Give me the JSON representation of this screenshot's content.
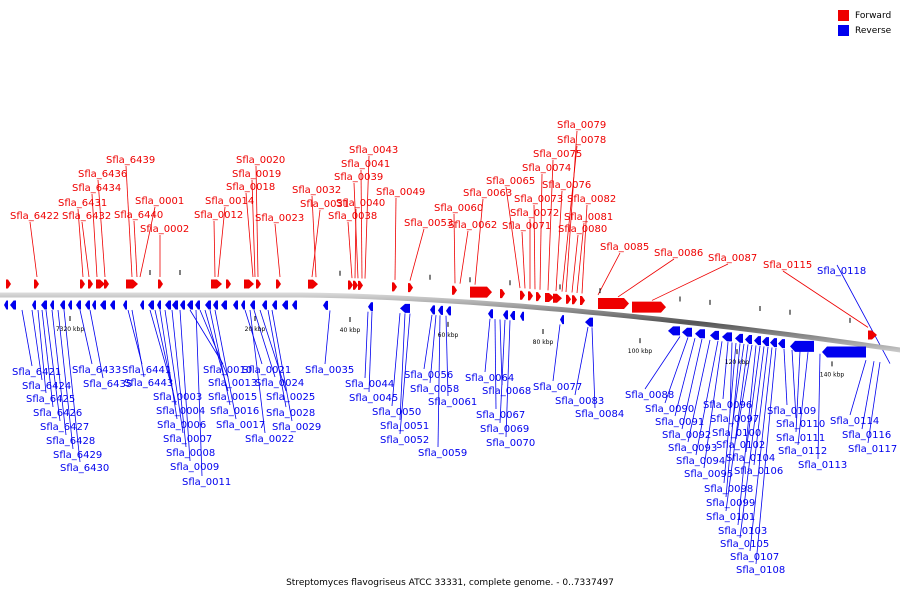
{
  "caption": "Streptomyces flavogriseus ATCC 33331, complete genome. - 0..7337497",
  "legend": [
    {
      "label": "Forward",
      "color": "#ee0000"
    },
    {
      "label": "Reverse",
      "color": "#0000ee"
    }
  ],
  "colors": {
    "forward": "#ee0000",
    "reverse": "#0000ee",
    "backbone": "#555555"
  },
  "scale_labels": [
    "7320 kbp",
    "20 kbp",
    "40 kbp",
    "60 kbp",
    "80 kbp",
    "100 kbp",
    "120 kbp",
    "140 kbp"
  ],
  "forward_labels": [
    "Sfla_6422",
    "Sfla_6431",
    "Sfla_6432",
    "Sfla_6434",
    "Sfla_6436",
    "Sfla_6439",
    "Sfla_6440",
    "Sfla_0001",
    "Sfla_0002",
    "Sfla_0012",
    "Sfla_0014",
    "Sfla_0018",
    "Sfla_0019",
    "Sfla_0020",
    "Sfla_0023",
    "Sfla_0031",
    "Sfla_0032",
    "Sfla_0038",
    "Sfla_0040",
    "Sfla_0039",
    "Sfla_0041",
    "Sfla_0043",
    "Sfla_0049",
    "Sfla_0053",
    "Sfla_0060",
    "Sfla_0062",
    "Sfla_0063",
    "Sfla_0065",
    "Sfla_0071",
    "Sfla_0072",
    "Sfla_0073",
    "Sfla_0074",
    "Sfla_0075",
    "Sfla_0076",
    "Sfla_0078",
    "Sfla_0079",
    "Sfla_0080",
    "Sfla_0081",
    "Sfla_0082",
    "Sfla_0085",
    "Sfla_0086",
    "Sfla_0087",
    "Sfla_0115"
  ],
  "reverse_labels": [
    "Sfla_0118",
    "Sfla_6421",
    "Sfla_6424",
    "Sfla_6425",
    "Sfla_6426",
    "Sfla_6427",
    "Sfla_6428",
    "Sfla_6429",
    "Sfla_6430",
    "Sfla_6433",
    "Sfla_6435",
    "Sfla_6441",
    "Sfla_6443",
    "Sfla_0003",
    "Sfla_0004",
    "Sfla_0006",
    "Sfla_0007",
    "Sfla_0008",
    "Sfla_0009",
    "Sfla_0010",
    "Sfla_0011",
    "Sfla_0013",
    "Sfla_0015",
    "Sfla_0016",
    "Sfla_0017",
    "Sfla_0021",
    "Sfla_0022",
    "Sfla_0024",
    "Sfla_0025",
    "Sfla_0028",
    "Sfla_0029",
    "Sfla_0035",
    "Sfla_0044",
    "Sfla_0045",
    "Sfla_0050",
    "Sfla_0051",
    "Sfla_0052",
    "Sfla_0056",
    "Sfla_0058",
    "Sfla_0059",
    "Sfla_0061",
    "Sfla_0064",
    "Sfla_0067",
    "Sfla_0068",
    "Sfla_0069",
    "Sfla_0070",
    "Sfla_0077",
    "Sfla_0083",
    "Sfla_0084",
    "Sfla_0088",
    "Sfla_0090",
    "Sfla_0091",
    "Sfla_0092",
    "Sfla_0093",
    "Sfla_0094",
    "Sfla_0095",
    "Sfla_0096",
    "Sfla_0097",
    "Sfla_0098",
    "Sfla_0099",
    "Sfla_0100",
    "Sfla_0101",
    "Sfla_0102",
    "Sfla_0103",
    "Sfla_0104",
    "Sfla_0105",
    "Sfla_0106",
    "Sfla_0107",
    "Sfla_0108",
    "Sfla_0109",
    "Sfla_0110",
    "Sfla_0111",
    "Sfla_0112",
    "Sfla_0113",
    "Sfla_0114",
    "Sfla_0116",
    "Sfla_0117"
  ]
}
